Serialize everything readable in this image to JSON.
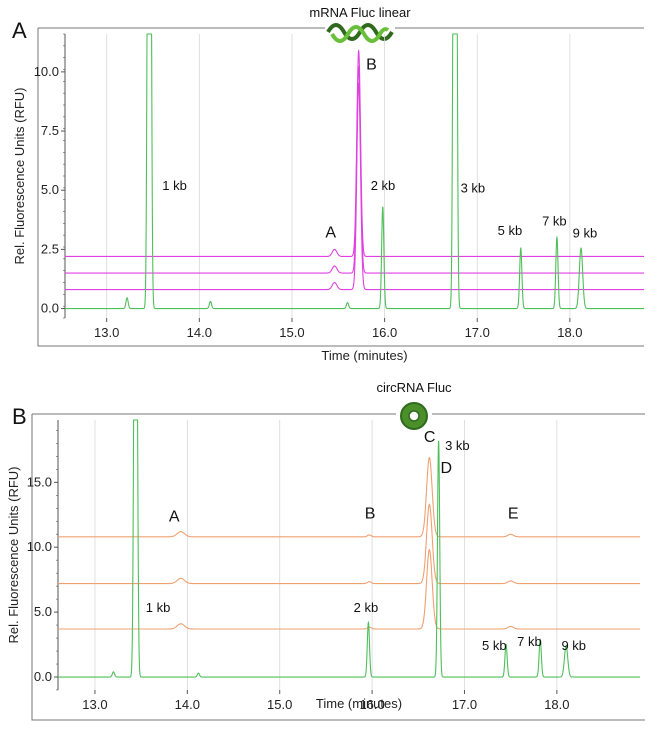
{
  "colors": {
    "ladder": "#4fbf5a",
    "linear": "#e040e0",
    "circ": "#f0a070",
    "grid": "#d8d8d8",
    "frame": "#555555",
    "logo_dark": "#2f6a1f",
    "logo_light": "#6abf3a"
  },
  "chart_data": [
    {
      "type": "line",
      "panel_label": "A",
      "header": "mRNA Fluc linear",
      "header_icon": "mrna-wave-icon",
      "xlabel": "Time (minutes)",
      "ylabel": "Rel. Fluorescence Units (RFU)",
      "xlim": [
        12.55,
        18.8
      ],
      "ylim": [
        -0.4,
        11.6
      ],
      "clip_top": 11.6,
      "xticks": [
        13.0,
        14.0,
        15.0,
        16.0,
        17.0,
        18.0
      ],
      "xtick_labels": [
        "13.0",
        "14.0",
        "15.0",
        "16.0",
        "17.0",
        "18.0"
      ],
      "yticks": [
        0.0,
        2.5,
        5.0,
        7.5,
        10.0
      ],
      "ytick_labels": [
        "0.0",
        "2.5",
        "5.0",
        "7.5",
        "10.0"
      ],
      "grid": true,
      "ladder": {
        "baseline": 0.0,
        "peaks": [
          {
            "x": 13.22,
            "h": 0.45,
            "w": 0.012
          },
          {
            "x": 13.45,
            "h": 25,
            "w": 0.012
          },
          {
            "x": 13.47,
            "h": 25,
            "w": 0.012
          },
          {
            "x": 14.12,
            "h": 0.3,
            "w": 0.012
          },
          {
            "x": 15.6,
            "h": 0.25,
            "w": 0.012
          },
          {
            "x": 15.98,
            "h": 4.3,
            "w": 0.012
          },
          {
            "x": 16.75,
            "h": 25,
            "w": 0.012
          },
          {
            "x": 16.77,
            "h": 25,
            "w": 0.012
          },
          {
            "x": 17.47,
            "h": 2.55,
            "w": 0.012
          },
          {
            "x": 17.86,
            "h": 3.0,
            "w": 0.012
          },
          {
            "x": 18.12,
            "h": 2.55,
            "w": 0.018
          }
        ]
      },
      "samples": [
        {
          "baseline": 2.2,
          "peaks": [
            {
              "x": 15.46,
              "h": 0.3,
              "w": 0.025
            },
            {
              "x": 15.72,
              "h": 8.7,
              "w": 0.02
            }
          ]
        },
        {
          "baseline": 1.5,
          "peaks": [
            {
              "x": 15.46,
              "h": 0.3,
              "w": 0.025
            },
            {
              "x": 15.72,
              "h": 8.7,
              "w": 0.02
            }
          ]
        },
        {
          "baseline": 0.8,
          "peaks": [
            {
              "x": 15.46,
              "h": 0.3,
              "w": 0.025
            },
            {
              "x": 15.72,
              "h": 8.7,
              "w": 0.02
            }
          ]
        }
      ],
      "peak_labels": [
        {
          "text": "1 kb",
          "x": 13.6,
          "y": 5.0
        },
        {
          "text": "2 kb",
          "x": 15.85,
          "y": 5.0
        },
        {
          "text": "3 kb",
          "x": 16.82,
          "y": 4.9
        },
        {
          "text": "5 kb",
          "x": 17.22,
          "y": 3.1
        },
        {
          "text": "7 kb",
          "x": 17.7,
          "y": 3.5
        },
        {
          "text": "9 kb",
          "x": 18.03,
          "y": 3.0
        }
      ],
      "letters": [
        {
          "text": "A",
          "x": 15.36,
          "y": 3.0
        },
        {
          "text": "B",
          "x": 15.8,
          "y": 10.1
        }
      ]
    },
    {
      "type": "line",
      "panel_label": "B",
      "header": "circRNA Fluc",
      "header_icon": "circrna-ring-icon",
      "xlabel": "Time (minutes)",
      "ylabel": "Rel. Fluorescence Units (RFU)",
      "xlim": [
        12.6,
        18.9
      ],
      "ylim": [
        -1.0,
        19.8
      ],
      "clip_top": 19.8,
      "xticks": [
        13.0,
        14.0,
        15.0,
        16.0,
        17.0,
        18.0
      ],
      "xtick_labels": [
        "13.0",
        "14.0",
        "15.0",
        "16.0",
        "17.0",
        "18.0"
      ],
      "yticks": [
        0.0,
        5.0,
        10.0,
        15.0
      ],
      "ytick_labels": [
        "0.0",
        "5.0",
        "10.0",
        "15.0"
      ],
      "grid": true,
      "ladder": {
        "baseline": 0.0,
        "peaks": [
          {
            "x": 13.2,
            "h": 0.4,
            "w": 0.012
          },
          {
            "x": 13.43,
            "h": 30,
            "w": 0.012
          },
          {
            "x": 13.45,
            "h": 30,
            "w": 0.012
          },
          {
            "x": 14.12,
            "h": 0.3,
            "w": 0.012
          },
          {
            "x": 15.96,
            "h": 4.2,
            "w": 0.012
          },
          {
            "x": 16.72,
            "h": 18.2,
            "w": 0.012
          },
          {
            "x": 17.45,
            "h": 2.5,
            "w": 0.012
          },
          {
            "x": 17.82,
            "h": 2.9,
            "w": 0.012
          },
          {
            "x": 18.1,
            "h": 2.4,
            "w": 0.018
          }
        ]
      },
      "samples": [
        {
          "baseline": 10.8,
          "peaks": [
            {
              "x": 13.93,
              "h": 0.4,
              "w": 0.04
            },
            {
              "x": 15.97,
              "h": 0.15,
              "w": 0.02
            },
            {
              "x": 16.62,
              "h": 6.1,
              "w": 0.03
            },
            {
              "x": 17.5,
              "h": 0.2,
              "w": 0.03
            }
          ]
        },
        {
          "baseline": 7.2,
          "peaks": [
            {
              "x": 13.93,
              "h": 0.4,
              "w": 0.04
            },
            {
              "x": 15.97,
              "h": 0.15,
              "w": 0.02
            },
            {
              "x": 16.62,
              "h": 6.1,
              "w": 0.03
            },
            {
              "x": 17.5,
              "h": 0.2,
              "w": 0.03
            }
          ]
        },
        {
          "baseline": 3.7,
          "peaks": [
            {
              "x": 13.93,
              "h": 0.4,
              "w": 0.04
            },
            {
              "x": 15.97,
              "h": 0.15,
              "w": 0.02
            },
            {
              "x": 16.62,
              "h": 6.1,
              "w": 0.03
            },
            {
              "x": 17.5,
              "h": 0.2,
              "w": 0.03
            }
          ]
        }
      ],
      "peak_labels": [
        {
          "text": "1 kb",
          "x": 13.55,
          "y": 5.0
        },
        {
          "text": "2 kb",
          "x": 15.8,
          "y": 5.0
        },
        {
          "text": "3 kb",
          "x": 16.79,
          "y": 17.5
        },
        {
          "text": "5 kb",
          "x": 17.19,
          "y": 2.1
        },
        {
          "text": "7 kb",
          "x": 17.57,
          "y": 2.4
        },
        {
          "text": "9 kb",
          "x": 18.05,
          "y": 2.1
        }
      ],
      "letters": [
        {
          "text": "A",
          "x": 13.8,
          "y": 12.0
        },
        {
          "text": "B",
          "x": 15.92,
          "y": 12.2
        },
        {
          "text": "C",
          "x": 16.56,
          "y": 18.1
        },
        {
          "text": "D",
          "x": 16.74,
          "y": 15.7
        },
        {
          "text": "E",
          "x": 17.47,
          "y": 12.2
        }
      ]
    }
  ]
}
